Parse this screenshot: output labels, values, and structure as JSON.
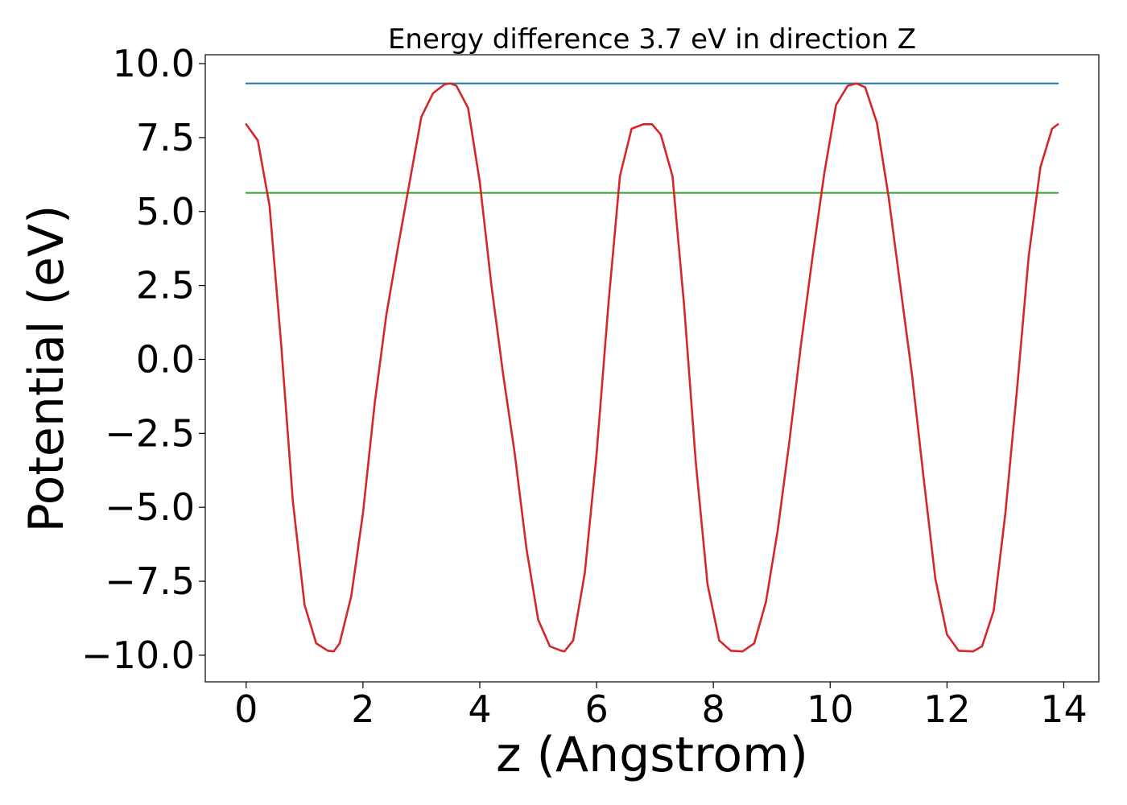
{
  "chart_data": {
    "type": "line",
    "title": "Energy difference 3.7 eV in direction Z",
    "xlabel": "z (Angstrom)",
    "ylabel": "Potential (eV)",
    "xlim": [
      -0.7,
      14.6
    ],
    "ylim": [
      -10.9,
      10.3
    ],
    "x_ticks": [
      0,
      2,
      4,
      6,
      8,
      10,
      12,
      14
    ],
    "x_tick_labels": [
      "0",
      "2",
      "4",
      "6",
      "8",
      "10",
      "12",
      "14"
    ],
    "y_ticks": [
      -10,
      -7.5,
      -5,
      -2.5,
      0,
      2.5,
      5,
      7.5,
      10
    ],
    "y_tick_labels": [
      "−10.0",
      "−7.5",
      "−5.0",
      "−2.5",
      "0.0",
      "2.5",
      "5.0",
      "7.5",
      "10.0"
    ],
    "grid": false,
    "series": [
      {
        "color": "#1f77b4",
        "x": [
          0,
          13.9
        ],
        "y": [
          9.33,
          9.33
        ]
      },
      {
        "color": "#2ca02c",
        "x": [
          0,
          13.9
        ],
        "y": [
          5.63,
          5.63
        ]
      },
      {
        "color": "#d62728",
        "x": [
          0,
          0.2,
          0.4,
          0.6,
          0.8,
          1.0,
          1.2,
          1.4,
          1.5,
          1.6,
          1.8,
          2.0,
          2.2,
          2.4,
          2.6,
          2.8,
          3.0,
          3.2,
          3.4,
          3.5,
          3.6,
          3.8,
          4.0,
          4.2,
          4.4,
          4.6,
          4.8,
          5.0,
          5.2,
          5.4,
          5.45,
          5.6,
          5.8,
          6.0,
          6.2,
          6.4,
          6.6,
          6.8,
          6.95,
          7.1,
          7.3,
          7.5,
          7.7,
          7.9,
          8.1,
          8.3,
          8.5,
          8.7,
          8.9,
          9.1,
          9.3,
          9.5,
          9.7,
          9.9,
          10.1,
          10.3,
          10.45,
          10.6,
          10.8,
          11.0,
          11.2,
          11.4,
          11.6,
          11.8,
          12.0,
          12.2,
          12.45,
          12.6,
          12.8,
          13.0,
          13.2,
          13.4,
          13.6,
          13.8,
          13.9
        ],
        "y": [
          7.95,
          7.4,
          5.2,
          0.5,
          -4.8,
          -8.3,
          -9.6,
          -9.85,
          -9.87,
          -9.6,
          -8.0,
          -5.2,
          -1.5,
          1.5,
          3.8,
          6.0,
          8.2,
          9.0,
          9.3,
          9.33,
          9.25,
          8.5,
          6.0,
          2.5,
          -0.5,
          -3.2,
          -6.4,
          -8.8,
          -9.7,
          -9.85,
          -9.87,
          -9.5,
          -7.2,
          -3.2,
          1.8,
          6.2,
          7.8,
          7.95,
          7.95,
          7.6,
          6.2,
          1.8,
          -3.5,
          -7.6,
          -9.5,
          -9.85,
          -9.87,
          -9.6,
          -8.2,
          -5.8,
          -2.8,
          0.5,
          3.5,
          6.3,
          8.6,
          9.25,
          9.33,
          9.2,
          8.0,
          5.5,
          2.5,
          -0.5,
          -4.0,
          -7.4,
          -9.3,
          -9.85,
          -9.87,
          -9.7,
          -8.5,
          -5.2,
          -1.0,
          3.5,
          6.5,
          7.8,
          7.95
        ]
      }
    ]
  }
}
